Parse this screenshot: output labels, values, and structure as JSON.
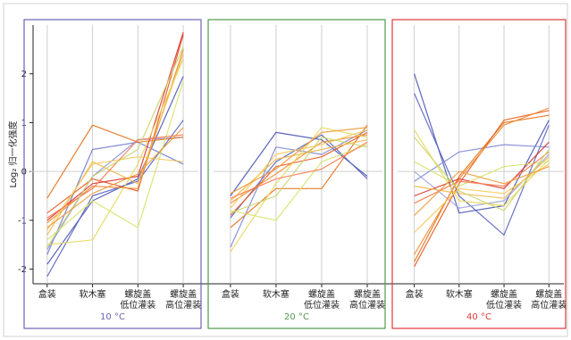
{
  "chart_data": {
    "type": "line",
    "ylabel": "Log₂ 归一化强度",
    "y_ticks": [
      2,
      1,
      0,
      -1,
      -2
    ],
    "ylim": [
      -2.3,
      3.0
    ],
    "categories": [
      "盒装",
      "软木塞",
      "螺旋盖\n低位灌装",
      "螺旋盖\n高位灌装"
    ],
    "grid": "vertical lines at categories, horizontal line at 0",
    "panels": [
      {
        "label": "10 °C",
        "border_color": "#6a63b3",
        "label_color": "#6a63b3",
        "series": [
          {
            "color": "#4a55b5",
            "values": [
              -1.9,
              -0.6,
              -0.15,
              1.95
            ]
          },
          {
            "color": "#5a64c0",
            "values": [
              -2.15,
              -0.5,
              -0.2,
              1.05
            ]
          },
          {
            "color": "#6f7ad0",
            "values": [
              -1.7,
              0.45,
              0.6,
              0.15
            ]
          },
          {
            "color": "#8d96dc",
            "values": [
              -1.6,
              -0.1,
              0.65,
              0.7
            ]
          },
          {
            "color": "#e66f1a",
            "values": [
              -0.55,
              0.95,
              0.6,
              0.7
            ]
          },
          {
            "color": "#e95a1f",
            "values": [
              -0.85,
              -0.15,
              -0.4,
              2.8
            ]
          },
          {
            "color": "#f08c30",
            "values": [
              -1.05,
              -0.3,
              -0.35,
              2.5
            ]
          },
          {
            "color": "#d8322e",
            "values": [
              -1.0,
              -0.25,
              -0.1,
              2.85
            ]
          },
          {
            "color": "#f2b84a",
            "values": [
              -1.3,
              0.2,
              -0.25,
              2.4
            ]
          },
          {
            "color": "#e8d85a",
            "values": [
              -1.5,
              -1.4,
              0.15,
              2.3
            ]
          },
          {
            "color": "#d6e36a",
            "values": [
              -1.4,
              -0.6,
              -1.15,
              1.85
            ]
          },
          {
            "color": "#f4c95c",
            "values": [
              -1.2,
              0.15,
              0.3,
              0.2
            ]
          },
          {
            "color": "#fb7a4a",
            "values": [
              -0.95,
              -0.35,
              0.65,
              0.75
            ]
          },
          {
            "color": "#c9d56a",
            "values": [
              -1.55,
              -0.1,
              0.45,
              2.55
            ]
          },
          {
            "color": "#ef9a3a",
            "values": [
              -1.15,
              -0.45,
              -0.05,
              0.9
            ]
          }
        ]
      },
      {
        "label": "20 °C",
        "border_color": "#4e9a4e",
        "label_color": "#4e9a4e",
        "series": [
          {
            "color": "#4a55b5",
            "values": [
              -0.5,
              0.8,
              0.65,
              -0.1
            ]
          },
          {
            "color": "#5a64c0",
            "values": [
              -0.95,
              0.2,
              0.75,
              -0.15
            ]
          },
          {
            "color": "#7e88d4",
            "values": [
              -1.55,
              0.5,
              0.35,
              0.85
            ]
          },
          {
            "color": "#e66f1a",
            "values": [
              -1.15,
              -0.35,
              -0.35,
              0.95
            ]
          },
          {
            "color": "#e95a1f",
            "values": [
              -0.9,
              0.1,
              0.3,
              0.8
            ]
          },
          {
            "color": "#f08c30",
            "values": [
              -0.65,
              -0.05,
              0.6,
              0.75
            ]
          },
          {
            "color": "#f2b84a",
            "values": [
              -0.6,
              0.25,
              0.45,
              0.65
            ]
          },
          {
            "color": "#e8d85a",
            "values": [
              -1.65,
              -0.25,
              0.9,
              0.7
            ]
          },
          {
            "color": "#d6e36a",
            "values": [
              -0.8,
              -1.0,
              0.2,
              0.55
            ]
          },
          {
            "color": "#f4c95c",
            "values": [
              -0.75,
              0.35,
              0.55,
              0.85
            ]
          },
          {
            "color": "#fb7a4a",
            "values": [
              -0.55,
              -0.15,
              0.05,
              0.6
            ]
          },
          {
            "color": "#c9d56a",
            "values": [
              -0.85,
              -0.5,
              0.7,
              0.5
            ]
          },
          {
            "color": "#ef9a3a",
            "values": [
              -0.45,
              0.05,
              0.8,
              0.9
            ]
          }
        ]
      },
      {
        "label": "40 °C",
        "border_color": "#e03a3a",
        "label_color": "#e03a3a",
        "series": [
          {
            "color": "#4a55b5",
            "values": [
              2.0,
              -0.85,
              -0.7,
              1.05
            ]
          },
          {
            "color": "#5a64c0",
            "values": [
              1.6,
              -0.5,
              -1.3,
              0.95
            ]
          },
          {
            "color": "#7e88d4",
            "values": [
              -0.2,
              0.4,
              0.55,
              0.5
            ]
          },
          {
            "color": "#9aa2de",
            "values": [
              0.0,
              -0.75,
              -0.6,
              0.35
            ]
          },
          {
            "color": "#e66f1a",
            "values": [
              -1.85,
              -0.1,
              1.0,
              1.15
            ]
          },
          {
            "color": "#e95a1f",
            "values": [
              -1.95,
              -0.25,
              1.05,
              1.25
            ]
          },
          {
            "color": "#f08c30",
            "values": [
              -1.7,
              -0.15,
              0.95,
              1.3
            ]
          },
          {
            "color": "#d8322e",
            "values": [
              -0.5,
              -0.15,
              -0.35,
              0.6
            ]
          },
          {
            "color": "#f2b84a",
            "values": [
              -0.3,
              -0.45,
              -0.55,
              0.3
            ]
          },
          {
            "color": "#e8d85a",
            "values": [
              0.85,
              -0.6,
              -0.7,
              0.25
            ]
          },
          {
            "color": "#d6e36a",
            "values": [
              0.2,
              -0.3,
              0.1,
              0.2
            ]
          },
          {
            "color": "#f4c95c",
            "values": [
              -1.25,
              -0.35,
              -0.45,
              0.15
            ]
          },
          {
            "color": "#fb7a4a",
            "values": [
              -0.65,
              -0.2,
              -0.3,
              0.4
            ]
          },
          {
            "color": "#c9d56a",
            "values": [
              0.7,
              -0.4,
              -0.8,
              0.45
            ]
          },
          {
            "color": "#ef9a3a",
            "values": [
              -0.9,
              0.0,
              -0.25,
              0.1
            ]
          }
        ]
      }
    ]
  }
}
